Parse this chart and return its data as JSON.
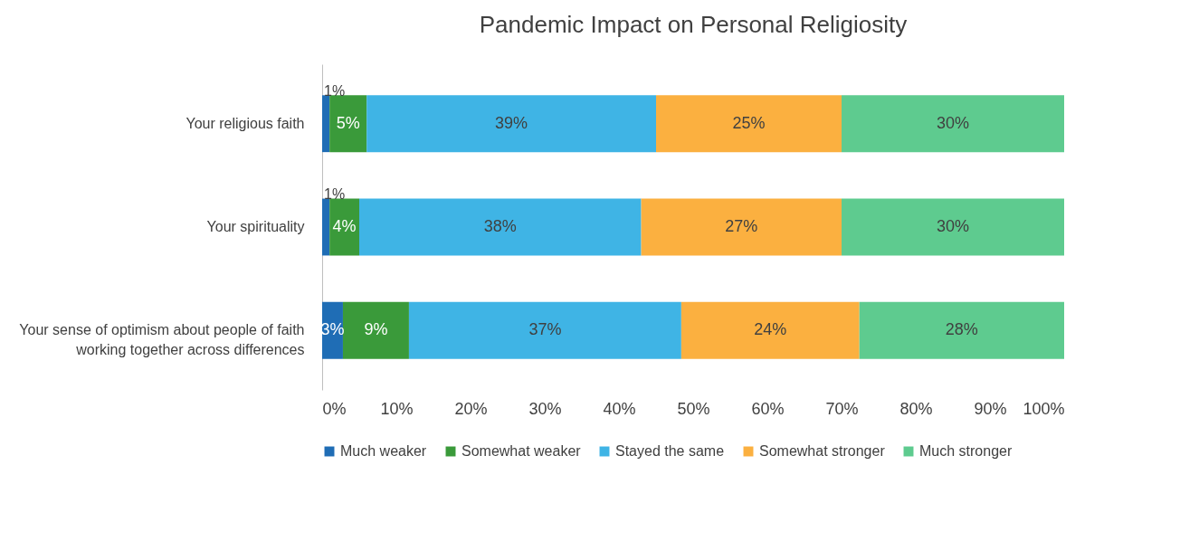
{
  "chart_data": {
    "type": "bar",
    "orientation": "horizontal",
    "stacked": true,
    "title": "Pandemic Impact on Personal Religiosity",
    "categories": [
      "Your religious faith",
      "Your spirituality",
      "Your sense of optimism about people of faith working together across differences"
    ],
    "series": [
      {
        "name": "Much weaker",
        "color": "#1f6db5",
        "values": [
          1,
          1,
          2.8
        ],
        "value_labels": [
          "1%",
          "1%",
          "3%"
        ]
      },
      {
        "name": "Somewhat weaker",
        "color": "#3a9a3a",
        "values": [
          5,
          4,
          8.9
        ],
        "value_labels": [
          "5%",
          "4%",
          "9%"
        ]
      },
      {
        "name": "Stayed the same",
        "color": "#3fb4e5",
        "values": [
          39,
          38,
          36.7
        ],
        "value_labels": [
          "39%",
          "38%",
          "37%"
        ]
      },
      {
        "name": "Somewhat stronger",
        "color": "#fbb040",
        "values": [
          25,
          27,
          24
        ],
        "value_labels": [
          "25%",
          "27%",
          "24%"
        ]
      },
      {
        "name": "Much stronger",
        "color": "#5ecb8f",
        "values": [
          30,
          30,
          27.6
        ],
        "value_labels": [
          "30%",
          "30%",
          "28%"
        ]
      }
    ],
    "xlim": [
      0,
      100
    ],
    "xticks": [
      {
        "value": 0,
        "label": "0%"
      },
      {
        "value": 10,
        "label": "10%"
      },
      {
        "value": 20,
        "label": "20%"
      },
      {
        "value": 30,
        "label": "30%"
      },
      {
        "value": 40,
        "label": "40%"
      },
      {
        "value": 50,
        "label": "50%"
      },
      {
        "value": 60,
        "label": "60%"
      },
      {
        "value": 70,
        "label": "70%"
      },
      {
        "value": 80,
        "label": "80%"
      },
      {
        "value": 90,
        "label": "90%"
      },
      {
        "value": 100,
        "label": "100%"
      }
    ],
    "grid": false,
    "legend": "bottom"
  }
}
